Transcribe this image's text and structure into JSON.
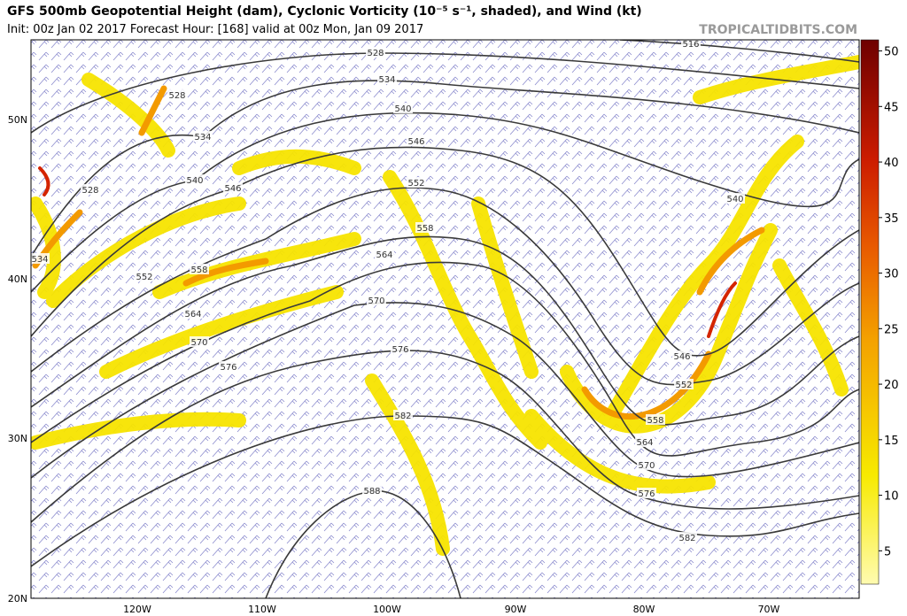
{
  "header": {
    "title": "GFS 500mb Geopotential Height (dam), Cyclonic Vorticity (10⁻⁵ s⁻¹, shaded), and Wind (kt)",
    "subtitle": "Init: 00z Jan 02 2017   Forecast Hour: [168]   valid at 00z Mon, Jan 09 2017",
    "site": "TROPICALTIDBITS.COM"
  },
  "map": {
    "lat_labels": [
      "50N",
      "40N",
      "30N",
      "20N"
    ],
    "lon_labels": [
      "120W",
      "110W",
      "100W",
      "90W",
      "80W",
      "70W"
    ],
    "contour_labels": [
      "516",
      "528",
      "528",
      "534",
      "534",
      "540",
      "540",
      "540",
      "546",
      "546",
      "546",
      "552",
      "552",
      "552",
      "558",
      "558",
      "558",
      "564",
      "564",
      "564",
      "570",
      "570",
      "570",
      "576",
      "576",
      "576",
      "582",
      "582",
      "588",
      "528",
      "534"
    ]
  },
  "colorbar": {
    "lim": [
      2,
      51
    ],
    "ticks": [
      5,
      10,
      15,
      20,
      25,
      30,
      35,
      40,
      45,
      50
    ]
  }
}
